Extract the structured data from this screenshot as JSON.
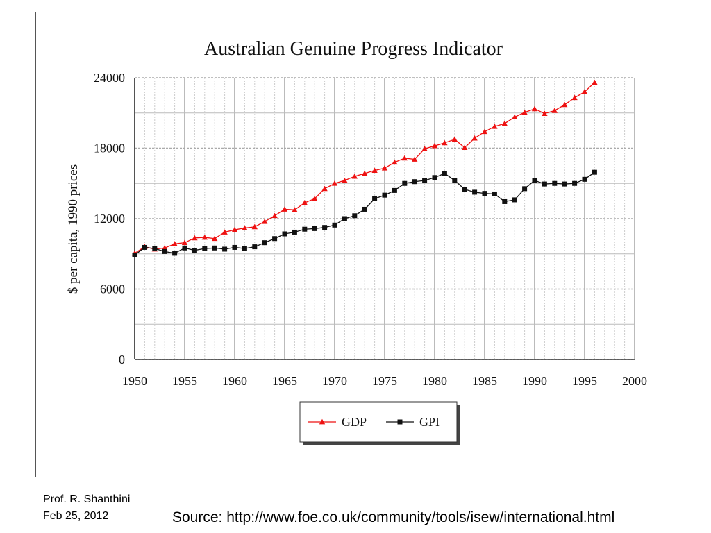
{
  "chart_data": {
    "type": "line",
    "title": "Australian Genuine Progress Indicator",
    "ylabel": "$ per capita, 1990 prices",
    "xlabel": "",
    "xlim": [
      1950,
      2000
    ],
    "ylim": [
      0,
      24000
    ],
    "xticks": [
      "1950",
      "1955",
      "1960",
      "1965",
      "1970",
      "1975",
      "1980",
      "1985",
      "1990",
      "1995",
      "2000"
    ],
    "yticks": [
      "0",
      "6000",
      "12000",
      "18000",
      "24000"
    ],
    "grid": true,
    "legend_position": "bottom-center",
    "x": [
      1950,
      1951,
      1952,
      1953,
      1954,
      1955,
      1956,
      1957,
      1958,
      1959,
      1960,
      1961,
      1962,
      1963,
      1964,
      1965,
      1966,
      1967,
      1968,
      1969,
      1970,
      1971,
      1972,
      1973,
      1974,
      1975,
      1976,
      1977,
      1978,
      1979,
      1980,
      1981,
      1982,
      1983,
      1984,
      1985,
      1986,
      1987,
      1988,
      1989,
      1990,
      1991,
      1992,
      1993,
      1994,
      1995,
      1996
    ],
    "series": [
      {
        "name": "GDP",
        "color": "#ee1111",
        "marker": "triangle",
        "values": [
          9050,
          9600,
          9400,
          9500,
          9850,
          9950,
          10350,
          10400,
          10300,
          10850,
          11050,
          11200,
          11300,
          11750,
          12250,
          12800,
          12750,
          13350,
          13700,
          14550,
          15000,
          15250,
          15600,
          15850,
          16100,
          16300,
          16800,
          17150,
          17050,
          17950,
          18200,
          18450,
          18750,
          18050,
          18850,
          19400,
          19850,
          20100,
          20650,
          21050,
          21350,
          20950,
          21200,
          21700,
          22300,
          22800,
          23600
        ]
      },
      {
        "name": "GPI",
        "color": "#111111",
        "marker": "square",
        "values": [
          8900,
          9550,
          9450,
          9200,
          9050,
          9500,
          9300,
          9450,
          9500,
          9400,
          9550,
          9450,
          9600,
          9950,
          10300,
          10700,
          10850,
          11100,
          11150,
          11250,
          11450,
          12000,
          12250,
          12800,
          13700,
          14000,
          14400,
          15000,
          15150,
          15250,
          15500,
          15850,
          15250,
          14500,
          14250,
          14150,
          14100,
          13450,
          13600,
          14550,
          15250,
          14950,
          15000,
          14950,
          15000,
          15350,
          15950
        ]
      }
    ]
  },
  "footer": {
    "author": "Prof. R. Shanthini",
    "date": "Feb 25, 2012",
    "source": "Source: http://www.foe.co.uk/community/tools/isew/international.html"
  }
}
